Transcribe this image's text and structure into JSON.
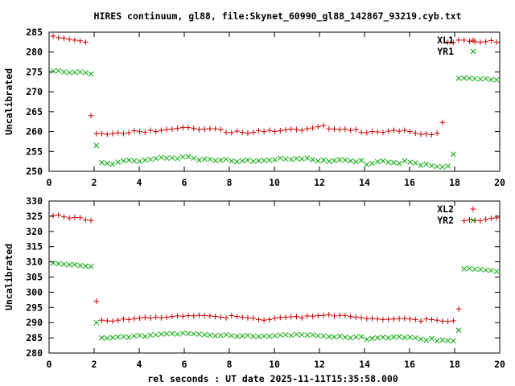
{
  "figure": {
    "title": "HIRES continuum, gl88, file:Skynet_60990_gl88_142867_93219.cyb.txt",
    "xlabel": "rel seconds : UT date 2025-11-11T15:35:58.000"
  },
  "chart_data": [
    {
      "type": "scatter",
      "panel": "top",
      "ylabel": "Uncalibrated",
      "xlim": [
        0,
        20
      ],
      "ylim": [
        250,
        285
      ],
      "xticks": [
        0,
        2,
        4,
        6,
        8,
        10,
        12,
        14,
        16,
        18,
        20
      ],
      "yticks": [
        250,
        255,
        260,
        265,
        270,
        275,
        280,
        285
      ],
      "legend": "top-right",
      "grid": false,
      "series": [
        {
          "name": "XL1",
          "marker": "+",
          "color": "#cc0000",
          "x": [
            0.18,
            0.42,
            0.66,
            0.9,
            1.14,
            1.38,
            1.62,
            1.86,
            2.1,
            2.34,
            2.58,
            2.82,
            3.06,
            3.3,
            3.54,
            3.78,
            4.02,
            4.26,
            4.5,
            4.74,
            4.98,
            5.22,
            5.46,
            5.7,
            5.94,
            6.18,
            6.42,
            6.66,
            6.9,
            7.14,
            7.38,
            7.62,
            7.86,
            8.1,
            8.34,
            8.58,
            8.82,
            9.06,
            9.3,
            9.54,
            9.78,
            10.02,
            10.26,
            10.5,
            10.74,
            10.98,
            11.22,
            11.46,
            11.7,
            11.94,
            12.18,
            12.42,
            12.66,
            12.9,
            13.14,
            13.38,
            13.62,
            13.86,
            14.1,
            14.34,
            14.58,
            14.82,
            15.06,
            15.3,
            15.54,
            15.78,
            16.02,
            16.26,
            16.5,
            16.74,
            16.98,
            17.22,
            17.46,
            17.7,
            17.94,
            18.18,
            18.42,
            18.66,
            18.9,
            19.14,
            19.38,
            19.62,
            19.86
          ],
          "y": [
            284,
            283.6,
            283.5,
            283.2,
            283,
            282.8,
            282.5,
            264,
            259.5,
            259.5,
            259.3,
            259.5,
            259.7,
            259.5,
            259.7,
            260.2,
            260.0,
            259.8,
            260.3,
            260,
            260.3,
            260.5,
            260.6,
            260.8,
            261.0,
            261.0,
            260.8,
            260.5,
            260.6,
            260.7,
            260.7,
            260.5,
            259.8,
            259.7,
            260.1,
            259.8,
            259.6,
            259.8,
            260.2,
            260.0,
            260.3,
            260.0,
            260.2,
            260.4,
            260.6,
            260.5,
            260.3,
            260.7,
            260.9,
            261.2,
            261.5,
            260.7,
            260.6,
            260.5,
            260.6,
            260.3,
            260.5,
            259.8,
            259.7,
            260.0,
            259.9,
            259.8,
            260.1,
            260.3,
            260.1,
            260.3,
            260.0,
            259.6,
            259.3,
            259.4,
            259.2,
            259.6,
            262.3,
            282.5,
            282.4,
            283,
            283,
            282.7,
            282.6,
            282.5,
            282.6,
            282.9,
            282.5
          ],
          "note_skip": false
        },
        {
          "name": "YR1",
          "marker": "x",
          "color": "#00aa00",
          "x": [
            0.18,
            0.42,
            0.66,
            0.9,
            1.14,
            1.38,
            1.62,
            1.86,
            2.1,
            2.34,
            2.58,
            2.82,
            3.06,
            3.3,
            3.54,
            3.78,
            4.02,
            4.26,
            4.5,
            4.74,
            4.98,
            5.22,
            5.46,
            5.7,
            5.94,
            6.18,
            6.42,
            6.66,
            6.9,
            7.14,
            7.38,
            7.62,
            7.86,
            8.1,
            8.34,
            8.58,
            8.82,
            9.06,
            9.3,
            9.54,
            9.78,
            10.02,
            10.26,
            10.5,
            10.74,
            10.98,
            11.22,
            11.46,
            11.7,
            11.94,
            12.18,
            12.42,
            12.66,
            12.9,
            13.14,
            13.38,
            13.62,
            13.86,
            14.1,
            14.34,
            14.58,
            14.82,
            15.06,
            15.3,
            15.54,
            15.78,
            16.02,
            16.26,
            16.5,
            16.74,
            16.98,
            17.22,
            17.46,
            17.7,
            17.94,
            18.18,
            18.42,
            18.66,
            18.9,
            19.14,
            19.38,
            19.62,
            19.86
          ],
          "y": [
            275.2,
            275.3,
            275,
            274.8,
            274.9,
            275,
            274.8,
            274.5,
            256.5,
            252.2,
            252,
            251.8,
            252.3,
            252.6,
            252.8,
            252.6,
            252.5,
            252.8,
            253,
            253.2,
            253.5,
            253.3,
            253.4,
            253.2,
            253.6,
            253.7,
            253.3,
            252.8,
            253.1,
            253,
            252.7,
            252.8,
            253,
            252.6,
            252.4,
            252.6,
            252.8,
            252.5,
            252.6,
            252.7,
            252.8,
            252.9,
            253.3,
            253.1,
            253.0,
            253.2,
            253.1,
            253.3,
            252.9,
            252.6,
            252.8,
            252.5,
            252.7,
            252.9,
            252.8,
            252.6,
            252.4,
            252.7,
            251.7,
            252.0,
            252.4,
            252.6,
            252.3,
            252.2,
            252.0,
            252.6,
            252.3,
            252.1,
            251.5,
            251.8,
            251.4,
            251.2,
            251.1,
            251.3,
            254.3,
            273.4,
            273.5,
            273.4,
            273.3,
            273.2,
            273.3,
            273.1,
            273
          ],
          "note_skip": false
        }
      ]
    },
    {
      "type": "scatter",
      "panel": "bottom",
      "ylabel": "Uncalibrated",
      "xlim": [
        0,
        20
      ],
      "ylim": [
        280,
        330
      ],
      "xticks": [
        0,
        2,
        4,
        6,
        8,
        10,
        12,
        14,
        16,
        18,
        20
      ],
      "yticks": [
        280,
        285,
        290,
        295,
        300,
        305,
        310,
        315,
        320,
        325,
        330
      ],
      "legend": "top-right",
      "grid": false,
      "series": [
        {
          "name": "XL2",
          "marker": "+",
          "color": "#cc0000",
          "x": [
            0.18,
            0.42,
            0.66,
            0.9,
            1.14,
            1.38,
            1.62,
            1.86,
            2.1,
            2.34,
            2.58,
            2.82,
            3.06,
            3.3,
            3.54,
            3.78,
            4.02,
            4.26,
            4.5,
            4.74,
            4.98,
            5.22,
            5.46,
            5.7,
            5.94,
            6.18,
            6.42,
            6.66,
            6.9,
            7.14,
            7.38,
            7.62,
            7.86,
            8.1,
            8.34,
            8.58,
            8.82,
            9.06,
            9.3,
            9.54,
            9.78,
            10.02,
            10.26,
            10.5,
            10.74,
            10.98,
            11.22,
            11.46,
            11.7,
            11.94,
            12.18,
            12.42,
            12.66,
            12.9,
            13.14,
            13.38,
            13.62,
            13.86,
            14.1,
            14.34,
            14.58,
            14.82,
            15.06,
            15.3,
            15.54,
            15.78,
            16.02,
            16.26,
            16.5,
            16.74,
            16.98,
            17.22,
            17.46,
            17.7,
            17.94,
            18.18,
            18.42,
            18.66,
            18.9,
            19.14,
            19.38,
            19.62,
            19.86
          ],
          "y": [
            325.2,
            325.4,
            324.8,
            324.4,
            324.6,
            324.5,
            323.8,
            323.6,
            297,
            290.8,
            290.6,
            290.5,
            290.8,
            291.2,
            291.0,
            291.3,
            291.5,
            291.7,
            291.5,
            291.8,
            291.6,
            291.8,
            292.0,
            292.2,
            292.1,
            292.3,
            292.2,
            292.4,
            292.3,
            292.2,
            292.0,
            291.8,
            291.6,
            292.3,
            292.0,
            291.8,
            291.6,
            291.5,
            291.0,
            290.8,
            291.0,
            291.5,
            291.7,
            291.8,
            291.9,
            292.0,
            291.6,
            292.2,
            292.1,
            292.3,
            292.4,
            292.6,
            292.2,
            292.4,
            292.3,
            292.0,
            291.8,
            291.6,
            291.3,
            291.4,
            291.2,
            291.0,
            291.1,
            291.2,
            291.3,
            291.4,
            291.2,
            291.0,
            290.5,
            291.2,
            291.0,
            290.8,
            290.5,
            290.4,
            290.6,
            294.5,
            323.5,
            323.8,
            323.6,
            323.5,
            324.0,
            324.3,
            324.5
          ],
          "note_skip": false
        },
        {
          "name": "YR2",
          "marker": "x",
          "color": "#00aa00",
          "x": [
            0.18,
            0.42,
            0.66,
            0.9,
            1.14,
            1.38,
            1.62,
            1.86,
            2.1,
            2.34,
            2.58,
            2.82,
            3.06,
            3.3,
            3.54,
            3.78,
            4.02,
            4.26,
            4.5,
            4.74,
            4.98,
            5.22,
            5.46,
            5.7,
            5.94,
            6.18,
            6.42,
            6.66,
            6.9,
            7.14,
            7.38,
            7.62,
            7.86,
            8.1,
            8.34,
            8.58,
            8.82,
            9.06,
            9.3,
            9.54,
            9.78,
            10.02,
            10.26,
            10.5,
            10.74,
            10.98,
            11.22,
            11.46,
            11.7,
            11.94,
            12.18,
            12.42,
            12.66,
            12.9,
            13.14,
            13.38,
            13.62,
            13.86,
            14.1,
            14.34,
            14.58,
            14.82,
            15.06,
            15.3,
            15.54,
            15.78,
            16.02,
            16.26,
            16.5,
            16.74,
            16.98,
            17.22,
            17.46,
            17.7,
            17.94,
            18.18,
            18.42,
            18.66,
            18.9,
            19.14,
            19.38,
            19.62,
            19.86
          ],
          "y": [
            309.6,
            309.4,
            309.2,
            309.0,
            309.1,
            308.8,
            308.6,
            308.5,
            290,
            285.0,
            284.9,
            285.1,
            285.3,
            285.4,
            285.2,
            285.6,
            285.8,
            285.5,
            285.9,
            286.0,
            286.2,
            286.3,
            286.4,
            286.2,
            286.5,
            286.4,
            286.3,
            286.2,
            286.0,
            285.9,
            285.7,
            285.8,
            286.0,
            285.7,
            285.5,
            285.6,
            285.8,
            285.5,
            285.4,
            285.6,
            285.5,
            285.7,
            285.9,
            286.0,
            285.8,
            286.1,
            286.0,
            285.9,
            286.0,
            285.7,
            285.6,
            285.4,
            285.3,
            285.5,
            285.2,
            285.0,
            285.3,
            285.4,
            284.5,
            284.8,
            285.0,
            285.2,
            285.0,
            285.3,
            285.4,
            285.1,
            285.2,
            285.0,
            284.6,
            284.2,
            284.8,
            284.0,
            284.3,
            284.1,
            284.0,
            287.5,
            307.7,
            307.8,
            307.6,
            307.5,
            307.3,
            307.2,
            306.8
          ],
          "note_skip": false
        }
      ]
    }
  ]
}
